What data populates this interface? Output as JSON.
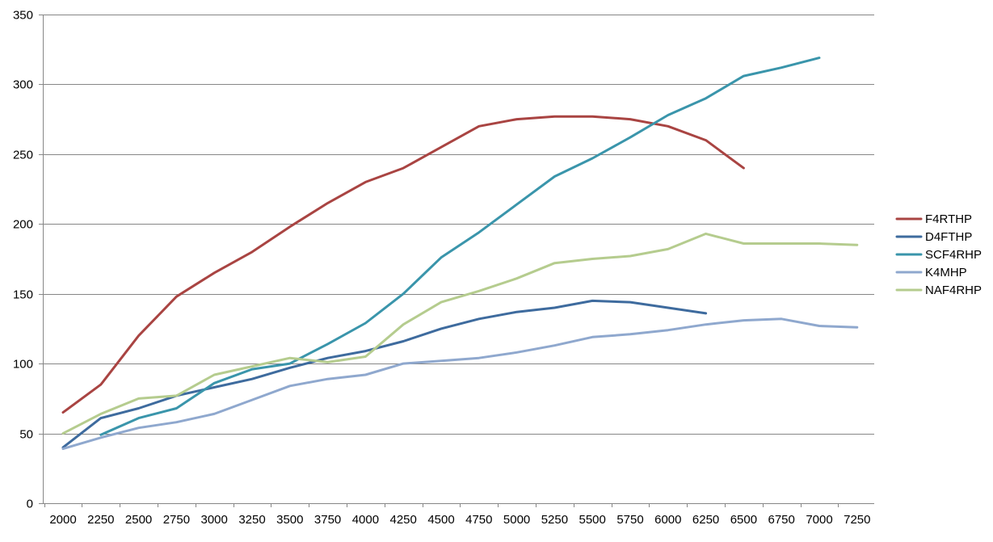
{
  "chart_data": {
    "type": "line",
    "title": "",
    "xlabel": "",
    "ylabel": "",
    "x": [
      2000,
      2250,
      2500,
      2750,
      3000,
      3250,
      3500,
      3750,
      4000,
      4250,
      4500,
      4750,
      5000,
      5250,
      5500,
      5750,
      6000,
      6250,
      6500,
      6750,
      7000,
      7250
    ],
    "x_tick_labels": [
      "2000",
      "2250",
      "2500",
      "2750",
      "3000",
      "3250",
      "3500",
      "3750",
      "4000",
      "4250",
      "4500",
      "4750",
      "5000",
      "5250",
      "5500",
      "5750",
      "6000",
      "6250",
      "6500",
      "6750",
      "7000",
      "7250"
    ],
    "ylim": [
      0,
      350
    ],
    "y_ticks": [
      0,
      50,
      100,
      150,
      200,
      250,
      300,
      350
    ],
    "y_tick_labels": [
      "0",
      "50",
      "100",
      "150",
      "200",
      "250",
      "300",
      "350"
    ],
    "grid": "horizontal",
    "legend_position": "right",
    "series": [
      {
        "name": "F4RTHP",
        "color": "#A94442",
        "values": [
          65,
          85,
          120,
          148,
          165,
          180,
          198,
          215,
          230,
          240,
          255,
          270,
          275,
          277,
          277,
          275,
          270,
          260,
          240,
          null,
          null,
          null
        ]
      },
      {
        "name": "D4FTHP",
        "color": "#3E6B9E",
        "values": [
          40,
          61,
          68,
          77,
          83,
          89,
          97,
          104,
          109,
          116,
          125,
          132,
          137,
          140,
          145,
          144,
          140,
          136,
          null,
          null,
          null,
          null
        ]
      },
      {
        "name": "SCF4RHP",
        "color": "#3A95AB",
        "values": [
          null,
          49,
          61,
          68,
          86,
          96,
          100,
          114,
          129,
          150,
          176,
          194,
          214,
          234,
          247,
          262,
          278,
          290,
          306,
          312,
          319,
          null
        ]
      },
      {
        "name": "K4MHP",
        "color": "#8FA8CE",
        "values": [
          39,
          47,
          54,
          58,
          64,
          74,
          84,
          89,
          92,
          100,
          102,
          104,
          108,
          113,
          119,
          121,
          124,
          128,
          131,
          132,
          127,
          126
        ]
      },
      {
        "name": "NAF4RHP",
        "color": "#B5CC8E",
        "values": [
          50,
          64,
          75,
          77,
          92,
          98,
          104,
          101,
          105,
          128,
          144,
          152,
          161,
          172,
          175,
          177,
          182,
          193,
          186,
          186,
          186,
          185
        ]
      }
    ]
  }
}
